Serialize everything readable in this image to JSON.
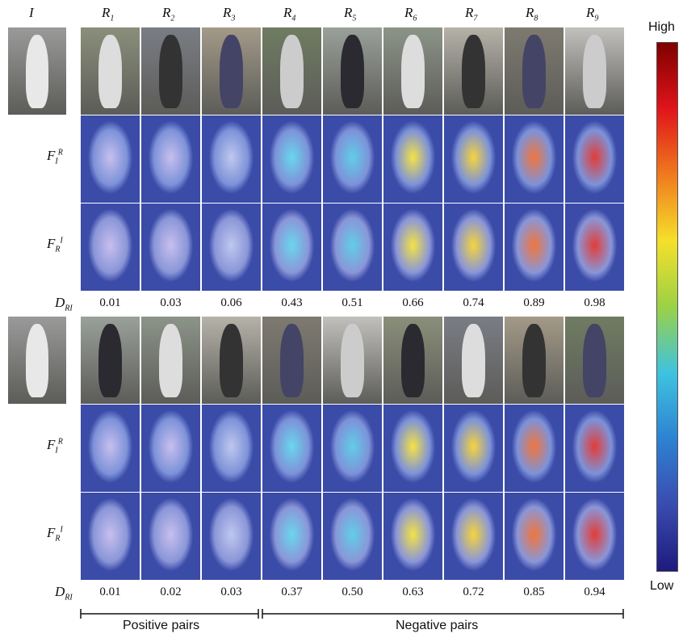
{
  "header": {
    "query_label": "I",
    "columns": [
      {
        "main": "R",
        "sub": "1"
      },
      {
        "main": "R",
        "sub": "2"
      },
      {
        "main": "R",
        "sub": "3"
      },
      {
        "main": "R",
        "sub": "4"
      },
      {
        "main": "R",
        "sub": "5"
      },
      {
        "main": "R",
        "sub": "6"
      },
      {
        "main": "R",
        "sub": "7"
      },
      {
        "main": "R",
        "sub": "8"
      },
      {
        "main": "R",
        "sub": "9"
      }
    ]
  },
  "groups": [
    {
      "rows": [
        {
          "main": "F",
          "sub": "I",
          "sup": "R"
        },
        {
          "main": "F",
          "sub": "R",
          "sup": "I"
        }
      ],
      "distance_label": {
        "main": "D",
        "sub": "RI"
      },
      "distances": [
        "0.01",
        "0.03",
        "0.06",
        "0.43",
        "0.51",
        "0.66",
        "0.74",
        "0.89",
        "0.98"
      ]
    },
    {
      "rows": [
        {
          "main": "F",
          "sub": "I",
          "sup": "R"
        },
        {
          "main": "F",
          "sub": "R",
          "sup": "I"
        }
      ],
      "distance_label": {
        "main": "D",
        "sub": "RI"
      },
      "distances": [
        "0.01",
        "0.02",
        "0.03",
        "0.37",
        "0.50",
        "0.63",
        "0.72",
        "0.85",
        "0.94"
      ]
    }
  ],
  "colorbar": {
    "high": "High",
    "low": "Low"
  },
  "footer": {
    "positive": "Positive pairs",
    "negative": "Negative pairs"
  }
}
